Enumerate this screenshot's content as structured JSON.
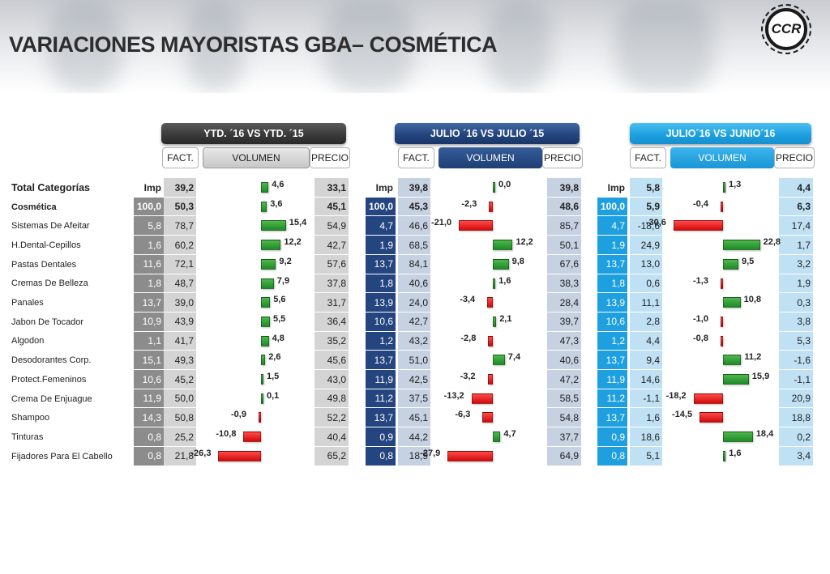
{
  "title": "VARIACIONES MAYORISTAS GBA– COSMÉTICA",
  "logo_text": "CCR",
  "colors": {
    "ytd": "#3a3a3a",
    "julio": "#24457f",
    "junio": "#1ea0e0",
    "positive": "#1f8a2a",
    "negative": "#d10a0a"
  },
  "chart_data": {
    "type": "table",
    "row_header": "Total  Categorías",
    "categories": [
      "Cosmética",
      "Sistemas De Afeitar",
      "H.Dental-Cepillos",
      "Pastas Dentales",
      "Cremas De Belleza",
      "Panales",
      "Jabon De Tocador",
      "Algodon",
      "Desodorantes Corp.",
      "Protect.Femeninos",
      "Crema De Enjuague",
      "Shampoo",
      "Tinturas",
      "Fijadores Para El Cabello"
    ],
    "groups": [
      {
        "header": "YTD. ´16 VS YTD. ´15",
        "sub_headers": [
          "FACT.",
          "VOLUMEN",
          "PRECIO"
        ],
        "total": {
          "imp_label": "Imp",
          "imp": "39,2",
          "fact": "",
          "volumen": 4.6,
          "volumen_label": "4,6",
          "precio": "33,1"
        },
        "rows": [
          {
            "imp": "100,0",
            "fact": "50,3",
            "vol": 3.6,
            "vol_label": "3,6",
            "precio": "45,1"
          },
          {
            "imp": "5,8",
            "fact": "78,7",
            "vol": 15.4,
            "vol_label": "15,4",
            "precio": "54,9"
          },
          {
            "imp": "1,6",
            "fact": "60,2",
            "vol": 12.2,
            "vol_label": "12,2",
            "precio": "42,7"
          },
          {
            "imp": "11,6",
            "fact": "72,1",
            "vol": 9.2,
            "vol_label": "9,2",
            "precio": "57,6"
          },
          {
            "imp": "1,8",
            "fact": "48,7",
            "vol": 7.9,
            "vol_label": "7,9",
            "precio": "37,8"
          },
          {
            "imp": "13,7",
            "fact": "39,0",
            "vol": 5.6,
            "vol_label": "5,6",
            "precio": "31,7"
          },
          {
            "imp": "10,9",
            "fact": "43,9",
            "vol": 5.5,
            "vol_label": "5,5",
            "precio": "36,4"
          },
          {
            "imp": "1,1",
            "fact": "41,7",
            "vol": 4.8,
            "vol_label": "4,8",
            "precio": "35,2"
          },
          {
            "imp": "15,1",
            "fact": "49,3",
            "vol": 2.6,
            "vol_label": "2,6",
            "precio": "45,6"
          },
          {
            "imp": "10,6",
            "fact": "45,2",
            "vol": 1.5,
            "vol_label": "1,5",
            "precio": "43,0"
          },
          {
            "imp": "11,9",
            "fact": "50,0",
            "vol": 0.1,
            "vol_label": "0,1",
            "precio": "49,8"
          },
          {
            "imp": "14,3",
            "fact": "50,8",
            "vol": -0.9,
            "vol_label": "-0,9",
            "precio": "52,2"
          },
          {
            "imp": "0,8",
            "fact": "25,2",
            "vol": -10.8,
            "vol_label": "-10,8",
            "precio": "40,4"
          },
          {
            "imp": "0,8",
            "fact": "21,8",
            "vol": -26.3,
            "vol_label": "-26,3",
            "precio": "65,2"
          }
        ]
      },
      {
        "header": "JULIO ´16 VS  JULIO ´15",
        "sub_headers": [
          "FACT.",
          "VOLUMEN",
          "PRECIO"
        ],
        "total": {
          "imp_label": "Imp",
          "imp": "39,8",
          "fact": "",
          "volumen": 0.0,
          "volumen_label": "0,0",
          "precio": "39,8"
        },
        "rows": [
          {
            "imp": "100,0",
            "fact": "45,3",
            "vol": -2.3,
            "vol_label": "-2,3",
            "precio": "48,6"
          },
          {
            "imp": "4,7",
            "fact": "46,6",
            "vol": -21.0,
            "vol_label": "-21,0",
            "precio": "85,7"
          },
          {
            "imp": "1,9",
            "fact": "68,5",
            "vol": 12.2,
            "vol_label": "12,2",
            "precio": "50,1"
          },
          {
            "imp": "13,7",
            "fact": "84,1",
            "vol": 9.8,
            "vol_label": "9,8",
            "precio": "67,6"
          },
          {
            "imp": "1,8",
            "fact": "40,6",
            "vol": 1.6,
            "vol_label": "1,6",
            "precio": "38,3"
          },
          {
            "imp": "13,9",
            "fact": "24,0",
            "vol": -3.4,
            "vol_label": "-3,4",
            "precio": "28,4"
          },
          {
            "imp": "10,6",
            "fact": "42,7",
            "vol": 2.1,
            "vol_label": "2,1",
            "precio": "39,7"
          },
          {
            "imp": "1,2",
            "fact": "43,2",
            "vol": -2.8,
            "vol_label": "-2,8",
            "precio": "47,3"
          },
          {
            "imp": "13,7",
            "fact": "51,0",
            "vol": 7.4,
            "vol_label": "7,4",
            "precio": "40,6"
          },
          {
            "imp": "11,9",
            "fact": "42,5",
            "vol": -3.2,
            "vol_label": "-3,2",
            "precio": "47,2"
          },
          {
            "imp": "11,2",
            "fact": "37,5",
            "vol": -13.2,
            "vol_label": "-13,2",
            "precio": "58,5"
          },
          {
            "imp": "13,7",
            "fact": "45,1",
            "vol": -6.3,
            "vol_label": "-6,3",
            "precio": "54,8"
          },
          {
            "imp": "0,9",
            "fact": "44,2",
            "vol": 4.7,
            "vol_label": "4,7",
            "precio": "37,7"
          },
          {
            "imp": "0,8",
            "fact": "18,9",
            "vol": -27.9,
            "vol_label": "-27,9",
            "precio": "64,9"
          }
        ]
      },
      {
        "header": "JULIO´16 VS JUNIO´16",
        "sub_headers": [
          "FACT.",
          "VOLUMEN",
          "PRECIO"
        ],
        "total": {
          "imp_label": "Imp",
          "imp": "5,8",
          "fact": "",
          "volumen": 1.3,
          "volumen_label": "1,3",
          "precio": "4,4"
        },
        "rows": [
          {
            "imp": "100,0",
            "fact": "5,9",
            "vol": -0.4,
            "vol_label": "-0,4",
            "precio": "6,3"
          },
          {
            "imp": "4,7",
            "fact": "-18,6",
            "vol": -30.6,
            "vol_label": "-30,6",
            "precio": "17,4"
          },
          {
            "imp": "1,9",
            "fact": "24,9",
            "vol": 22.8,
            "vol_label": "22,8",
            "precio": "1,7"
          },
          {
            "imp": "13,7",
            "fact": "13,0",
            "vol": 9.5,
            "vol_label": "9,5",
            "precio": "3,2"
          },
          {
            "imp": "1,8",
            "fact": "0,6",
            "vol": -1.3,
            "vol_label": "-1,3",
            "precio": "1,9"
          },
          {
            "imp": "13,9",
            "fact": "11,1",
            "vol": 10.8,
            "vol_label": "10,8",
            "precio": "0,3"
          },
          {
            "imp": "10,6",
            "fact": "2,8",
            "vol": -1.0,
            "vol_label": "-1,0",
            "precio": "3,8"
          },
          {
            "imp": "1,2",
            "fact": "4,4",
            "vol": -0.8,
            "vol_label": "-0,8",
            "precio": "5,3"
          },
          {
            "imp": "13,7",
            "fact": "9,4",
            "vol": 11.2,
            "vol_label": "11,2",
            "precio": "-1,6"
          },
          {
            "imp": "11,9",
            "fact": "14,6",
            "vol": 15.9,
            "vol_label": "15,9",
            "precio": "-1,1"
          },
          {
            "imp": "11,2",
            "fact": "-1,1",
            "vol": -18.2,
            "vol_label": "-18,2",
            "precio": "20,9"
          },
          {
            "imp": "13,7",
            "fact": "1,6",
            "vol": -14.5,
            "vol_label": "-14,5",
            "precio": "18,8"
          },
          {
            "imp": "0,9",
            "fact": "18,6",
            "vol": 18.4,
            "vol_label": "18,4",
            "precio": "0,2"
          },
          {
            "imp": "0,8",
            "fact": "5,1",
            "vol": 1.6,
            "vol_label": "1,6",
            "precio": "3,4"
          }
        ]
      }
    ]
  }
}
